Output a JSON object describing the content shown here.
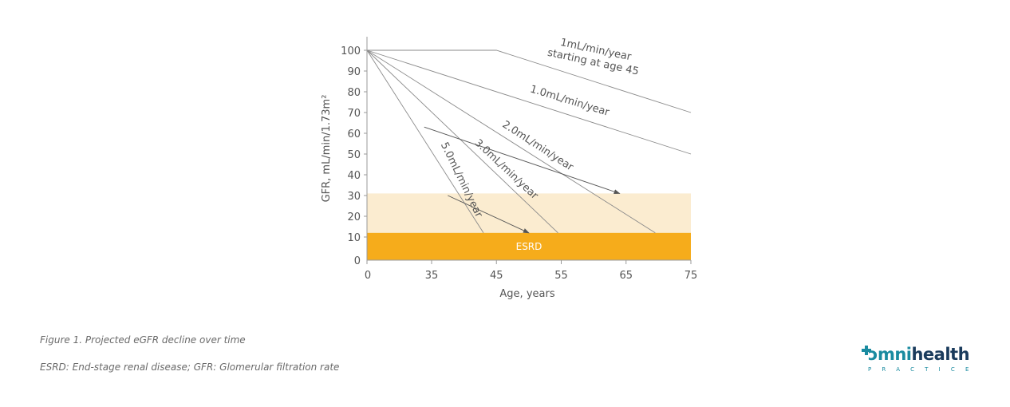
{
  "chart_data": {
    "type": "line",
    "ylabel": "GFR, mL/min/1.73m²",
    "xlabel": "Age, years",
    "x_ticks": [
      0,
      35,
      45,
      55,
      65,
      75
    ],
    "y_ticks": [
      0,
      10,
      20,
      30,
      40,
      50,
      60,
      70,
      80,
      90,
      100
    ],
    "bands": [
      {
        "label": "",
        "from": 12,
        "to": 31,
        "color": "#fbecd0"
      },
      {
        "label": "ESRD",
        "from": 0,
        "to": 12,
        "color": "#f6ac1b"
      }
    ],
    "series": [
      {
        "name": "1mL/min/year starting at age 45",
        "points": [
          [
            0,
            100
          ],
          [
            45,
            100
          ],
          [
            75,
            70
          ]
        ]
      },
      {
        "name": "1.0mL/min/year",
        "points": [
          [
            0,
            100
          ],
          [
            75,
            50
          ]
        ]
      },
      {
        "name": "2.0mL/min/year",
        "points": [
          [
            0,
            100
          ],
          [
            69.5,
            12
          ]
        ]
      },
      {
        "name": "3.0mL/min/year",
        "points": [
          [
            0,
            100
          ],
          [
            54.5,
            12
          ]
        ]
      },
      {
        "name": "5.0mL/min/year",
        "points": [
          [
            0,
            100
          ],
          [
            43,
            12
          ]
        ]
      }
    ],
    "arrows": [
      {
        "from": [
          31,
          63
        ],
        "to": [
          64,
          31
        ]
      },
      {
        "from": [
          37.5,
          30
        ],
        "to": [
          50,
          12
        ]
      }
    ]
  },
  "caption": {
    "line1": "Figure 1. Projected eGFR decline over time",
    "line2": "ESRD: End-stage renal disease; GFR: Glomerular filtration rate"
  },
  "logo": {
    "o": "ɔ",
    "rest": "mni",
    "health": "health",
    "sub": "PRACTICE"
  },
  "colors": {
    "axis": "#9a9a9a",
    "line": "#8a8a8a",
    "text": "#555555",
    "esrd": "#f6ac1b",
    "band": "#fbecd0",
    "brand_teal": "#1a8ba0",
    "brand_navy": "#1a3b5c"
  }
}
